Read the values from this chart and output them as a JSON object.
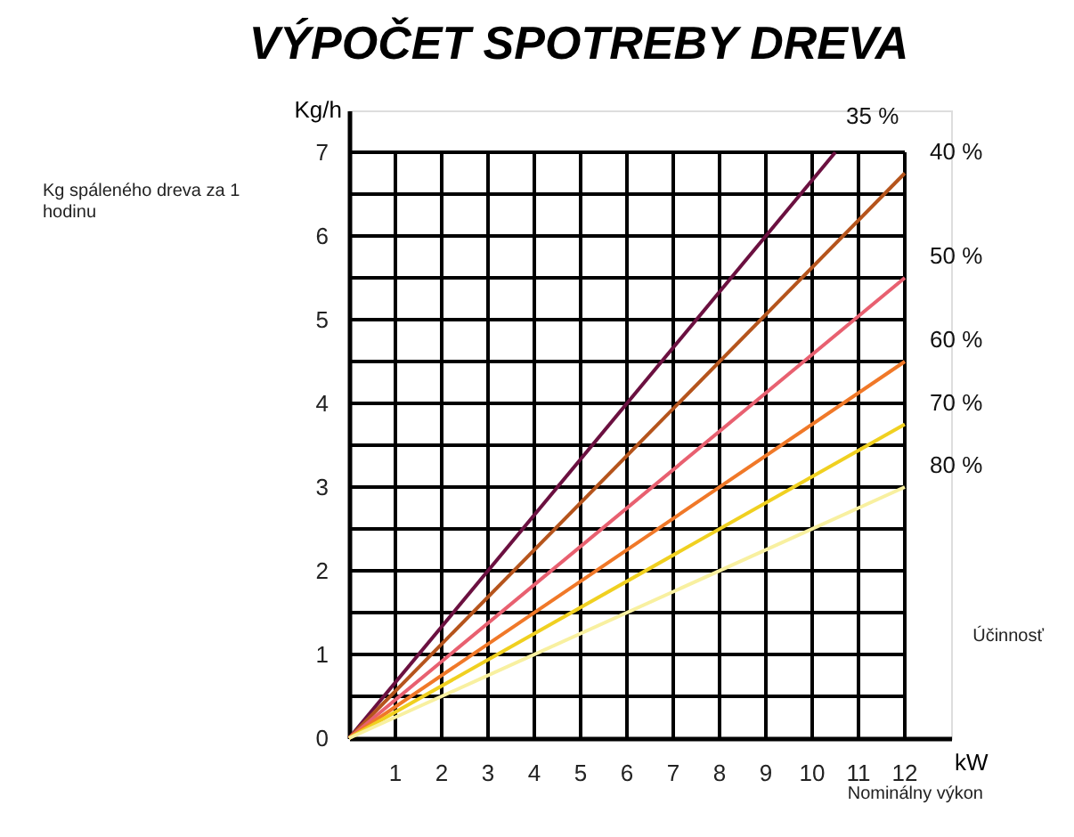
{
  "chart_data": {
    "type": "line",
    "title": "VÝPOČET SPOTREBY DREVA",
    "xlabel": "kW",
    "ylabel": "Kg/h",
    "annotations": [
      "Kg spáleného dreva za 1 hodinu",
      "Účinnosť",
      "Nominálny výkon"
    ],
    "xlim": [
      0,
      13
    ],
    "ylim": [
      0,
      7.5
    ],
    "xticks": [
      1,
      2,
      3,
      4,
      5,
      6,
      7,
      8,
      9,
      10,
      11,
      12
    ],
    "yticks": [
      0,
      {
        "value": 0.5,
        "label": null
      },
      1,
      {
        "value": 1.5,
        "label": null
      },
      2,
      {
        "value": 2.5,
        "label": null
      },
      3,
      {
        "value": 3.5,
        "label": null
      },
      4,
      {
        "value": 4.5,
        "label": null
      },
      5,
      {
        "value": 5.5,
        "label": null
      },
      6,
      {
        "value": 6.5,
        "label": null
      },
      7
    ],
    "grid": true,
    "marker": "none",
    "line_style": "solid",
    "series": [
      {
        "name": "35 %",
        "color": "#6b1040",
        "x": [
          0,
          10.5
        ],
        "values": [
          0,
          7
        ]
      },
      {
        "name": "40 %",
        "color": "#b5541c",
        "x": [
          0,
          12
        ],
        "values": [
          0,
          6.75
        ]
      },
      {
        "name": "50 %",
        "color": "#e86070",
        "x": [
          0,
          12
        ],
        "values": [
          0,
          5.5
        ]
      },
      {
        "name": "60 %",
        "color": "#f07828",
        "x": [
          0,
          12
        ],
        "values": [
          0,
          4.5
        ]
      },
      {
        "name": "70 %",
        "color": "#f0d020",
        "x": [
          0,
          12
        ],
        "values": [
          0,
          3.75
        ]
      },
      {
        "name": "80 %",
        "color": "#f8f0a0",
        "x": [
          0,
          12
        ],
        "values": [
          0,
          3
        ]
      }
    ]
  }
}
